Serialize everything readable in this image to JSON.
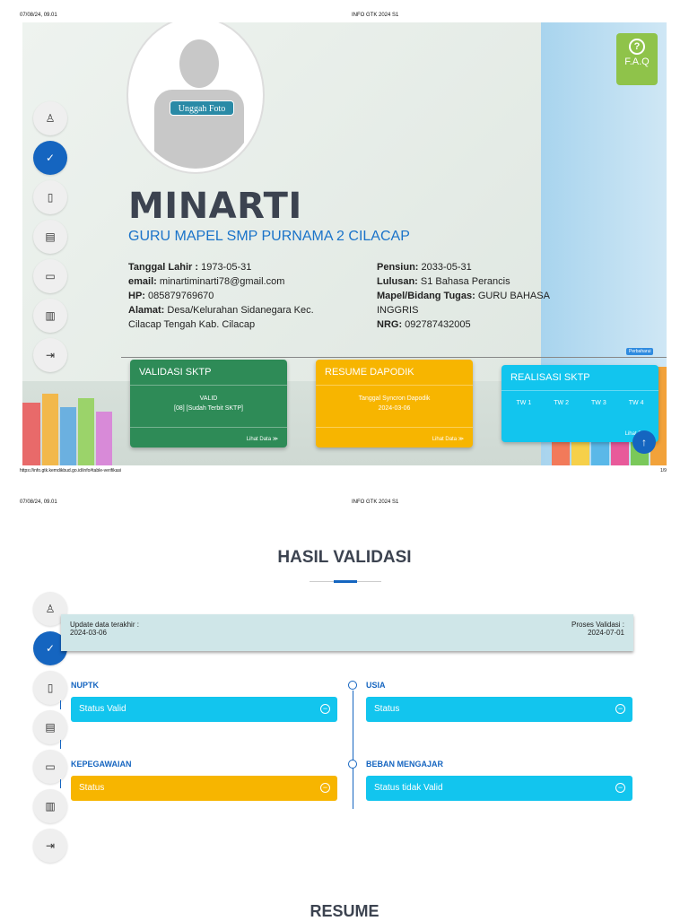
{
  "print_header": {
    "datetime": "07/08/24, 09.01",
    "title": "INFO GTK 2024 S1"
  },
  "page1_footer": {
    "url": "https://info.gtk.kemdikbud.go.id/info#table-verifikasi",
    "page": "1/9"
  },
  "profile": {
    "upload_label": "Unggah Foto",
    "name": "MINARTI",
    "role": "GURU MAPEL SMP PURNAMA 2 CILACAP",
    "left": [
      {
        "label": "Tanggal Lahir :",
        "value": " 1973-05-31"
      },
      {
        "label": "email:",
        "value": " minartiminarti78@gmail.com"
      },
      {
        "label": "HP:",
        "value": " 085879769670"
      },
      {
        "label": "Alamat:",
        "value": " Desa/Kelurahan Sidanegara Kec. Cilacap Tengah Kab. Cilacap"
      }
    ],
    "right": [
      {
        "label": "Pensiun:",
        "value": " 2033-05-31"
      },
      {
        "label": "Lulusan:",
        "value": " S1 Bahasa Perancis"
      },
      {
        "label": "Mapel/Bidang Tugas:",
        "value": " GURU BAHASA INGGRIS"
      },
      {
        "label": "NRG:",
        "value": " 092787432005"
      }
    ]
  },
  "faq_label": "F.A.Q",
  "faq_symbol": "?",
  "update_button": "Perbaharui",
  "cards": {
    "validasi": {
      "title": "VALIDASI SKTP",
      "line1": "VALID",
      "line2": "[08] [Sudah Terbit SKTP]",
      "link": "Lihat Data ≫"
    },
    "resume": {
      "title": "RESUME DAPODIK",
      "line1": "Tanggal Syncron Dapodik",
      "line2": "2024-03-06",
      "link": "Lihat Data ≫"
    },
    "realisasi": {
      "title": "REALISASI SKTP",
      "tw": [
        "TW 1",
        "TW 2",
        "TW 3",
        "TW 4"
      ],
      "link": "Lihat Data"
    }
  },
  "hasil": {
    "title": "HASIL VALIDASI",
    "update_label": "Update data terakhir :",
    "update_value": "2024-03-06",
    "proses_label": "Proses Validasi :",
    "proses_value": "2024-07-01",
    "items": {
      "nuptk": {
        "label": "NUPTK",
        "status": "Status Valid"
      },
      "usia": {
        "label": "USIA",
        "status": "Status"
      },
      "kepegawaian": {
        "label": "KEPEGAWAIAN",
        "status": "Status"
      },
      "beban": {
        "label": "BEBAN MENGAJAR",
        "status": "Status tidak Valid"
      }
    },
    "status_icon": "−"
  },
  "resume_title": "RESUME",
  "colors": {
    "primary": "#1565c0",
    "cyan": "#12c5ee",
    "yellow": "#f7b500",
    "green": "#2e8b57",
    "faq": "#8fc34a"
  },
  "icons": [
    "user-icon",
    "check-icon",
    "file-icon",
    "id-card-icon",
    "folder-icon",
    "archive-icon",
    "logout-icon",
    "arrow-up-icon"
  ]
}
